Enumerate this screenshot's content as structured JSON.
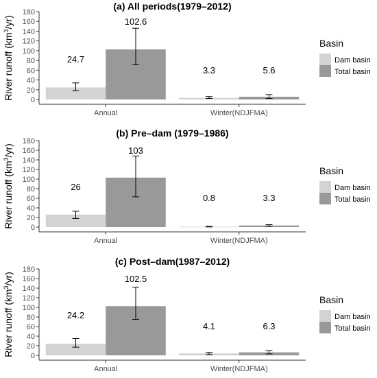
{
  "ylabel_main": "River runoff (km",
  "ylabel_sup": "3",
  "ylabel_tail": "/yr)",
  "legend": {
    "title": "Basin",
    "items": [
      {
        "label": "Dam basin",
        "color": "#d3d3d3"
      },
      {
        "label": "Total basin",
        "color": "#999999"
      }
    ]
  },
  "chart_data": [
    {
      "type": "bar",
      "title": "(a) All periods(1979–2012)",
      "categories": [
        "Annual",
        "Winter(NDJFMA)"
      ],
      "ylim": [
        0,
        180
      ],
      "yticks": [
        0,
        20,
        40,
        60,
        80,
        100,
        120,
        140,
        160,
        180
      ],
      "grid": false,
      "legend_position": "right",
      "series": [
        {
          "name": "Dam basin",
          "values": [
            24.7,
            3.3
          ],
          "error_low": [
            18,
            2
          ],
          "error_high": [
            34,
            6
          ],
          "labels": [
            "24.7",
            "3.3"
          ]
        },
        {
          "name": "Total basin",
          "values": [
            102.6,
            5.6
          ],
          "error_low": [
            71,
            2
          ],
          "error_high": [
            146,
            10
          ],
          "labels": [
            "102.6",
            "5.6"
          ]
        }
      ]
    },
    {
      "type": "bar",
      "title": "(b) Pre–dam (1979–1986)",
      "categories": [
        "Annual",
        "Winter(NDJFMA)"
      ],
      "ylim": [
        0,
        180
      ],
      "yticks": [
        0,
        20,
        40,
        60,
        80,
        100,
        120,
        140,
        160,
        180
      ],
      "grid": false,
      "legend_position": "right",
      "series": [
        {
          "name": "Dam basin",
          "values": [
            26,
            0.8
          ],
          "error_low": [
            18,
            0.3
          ],
          "error_high": [
            33,
            1.5
          ],
          "labels": [
            "26",
            "0.8"
          ]
        },
        {
          "name": "Total basin",
          "values": [
            103,
            3.3
          ],
          "error_low": [
            63,
            1.5
          ],
          "error_high": [
            148,
            5
          ],
          "labels": [
            "103",
            "3.3"
          ]
        }
      ]
    },
    {
      "type": "bar",
      "title": "(c) Post–dam(1987–2012)",
      "categories": [
        "Annual",
        "Winter(NDJFMA)"
      ],
      "ylim": [
        0,
        180
      ],
      "yticks": [
        0,
        20,
        40,
        60,
        80,
        100,
        120,
        140,
        160,
        180
      ],
      "grid": false,
      "legend_position": "right",
      "series": [
        {
          "name": "Dam basin",
          "values": [
            24.2,
            4.1
          ],
          "error_low": [
            17,
            1.5
          ],
          "error_high": [
            35,
            6
          ],
          "labels": [
            "24.2",
            "4.1"
          ]
        },
        {
          "name": "Total basin",
          "values": [
            102.5,
            6.3
          ],
          "error_low": [
            75,
            3
          ],
          "error_high": [
            142,
            10
          ],
          "labels": [
            "102.5",
            "6.3"
          ]
        }
      ]
    }
  ]
}
